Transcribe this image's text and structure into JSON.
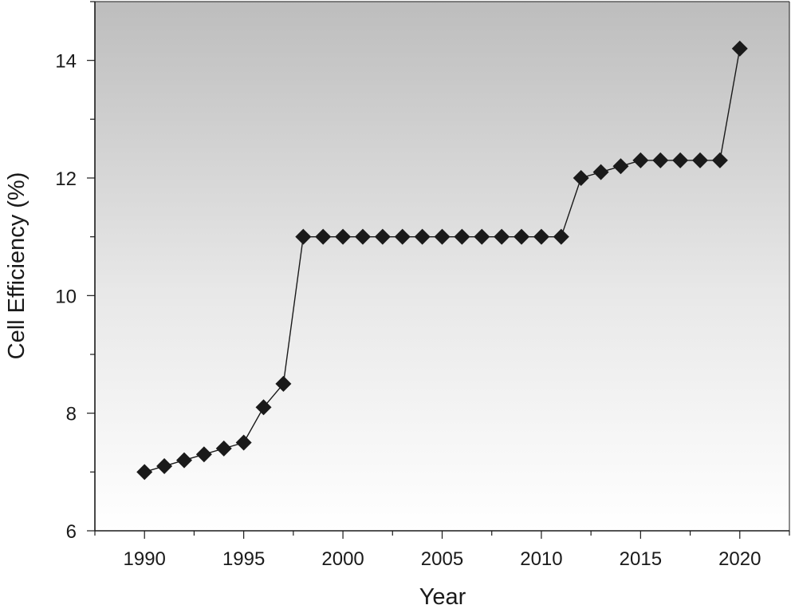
{
  "chart_data": {
    "type": "line",
    "title": "",
    "xlabel": "Year",
    "ylabel": "Cell Efficiency (%)",
    "xlim": [
      1987.5,
      2022.5
    ],
    "ylim": [
      6,
      15
    ],
    "x_ticks": [
      1990,
      1995,
      2000,
      2005,
      2010,
      2015,
      2020
    ],
    "y_ticks": [
      6,
      8,
      10,
      12,
      14
    ],
    "grid": false,
    "legend": "none",
    "background": "vertical gradient, grey top to white bottom",
    "colors": {
      "line": "#1a1a1a",
      "marker": "#1a1a1a",
      "gradient_top": "#bdbdbd",
      "gradient_bottom": "#ffffff"
    },
    "marker": "diamond",
    "series": [
      {
        "x": [
          1990,
          1991,
          1992,
          1993,
          1994,
          1995,
          1996,
          1997,
          1998,
          1999,
          2000,
          2001,
          2002,
          2003,
          2004,
          2005,
          2006,
          2007,
          2008,
          2009,
          2010,
          2011,
          2012,
          2013,
          2014,
          2015,
          2016,
          2017,
          2018,
          2019,
          2020
        ],
        "values": [
          7.0,
          7.1,
          7.2,
          7.3,
          7.4,
          7.5,
          8.1,
          8.5,
          11.0,
          11.0,
          11.0,
          11.0,
          11.0,
          11.0,
          11.0,
          11.0,
          11.0,
          11.0,
          11.0,
          11.0,
          11.0,
          11.0,
          12.0,
          12.1,
          12.2,
          12.3,
          12.3,
          12.3,
          12.3,
          12.3,
          14.2
        ]
      }
    ]
  }
}
